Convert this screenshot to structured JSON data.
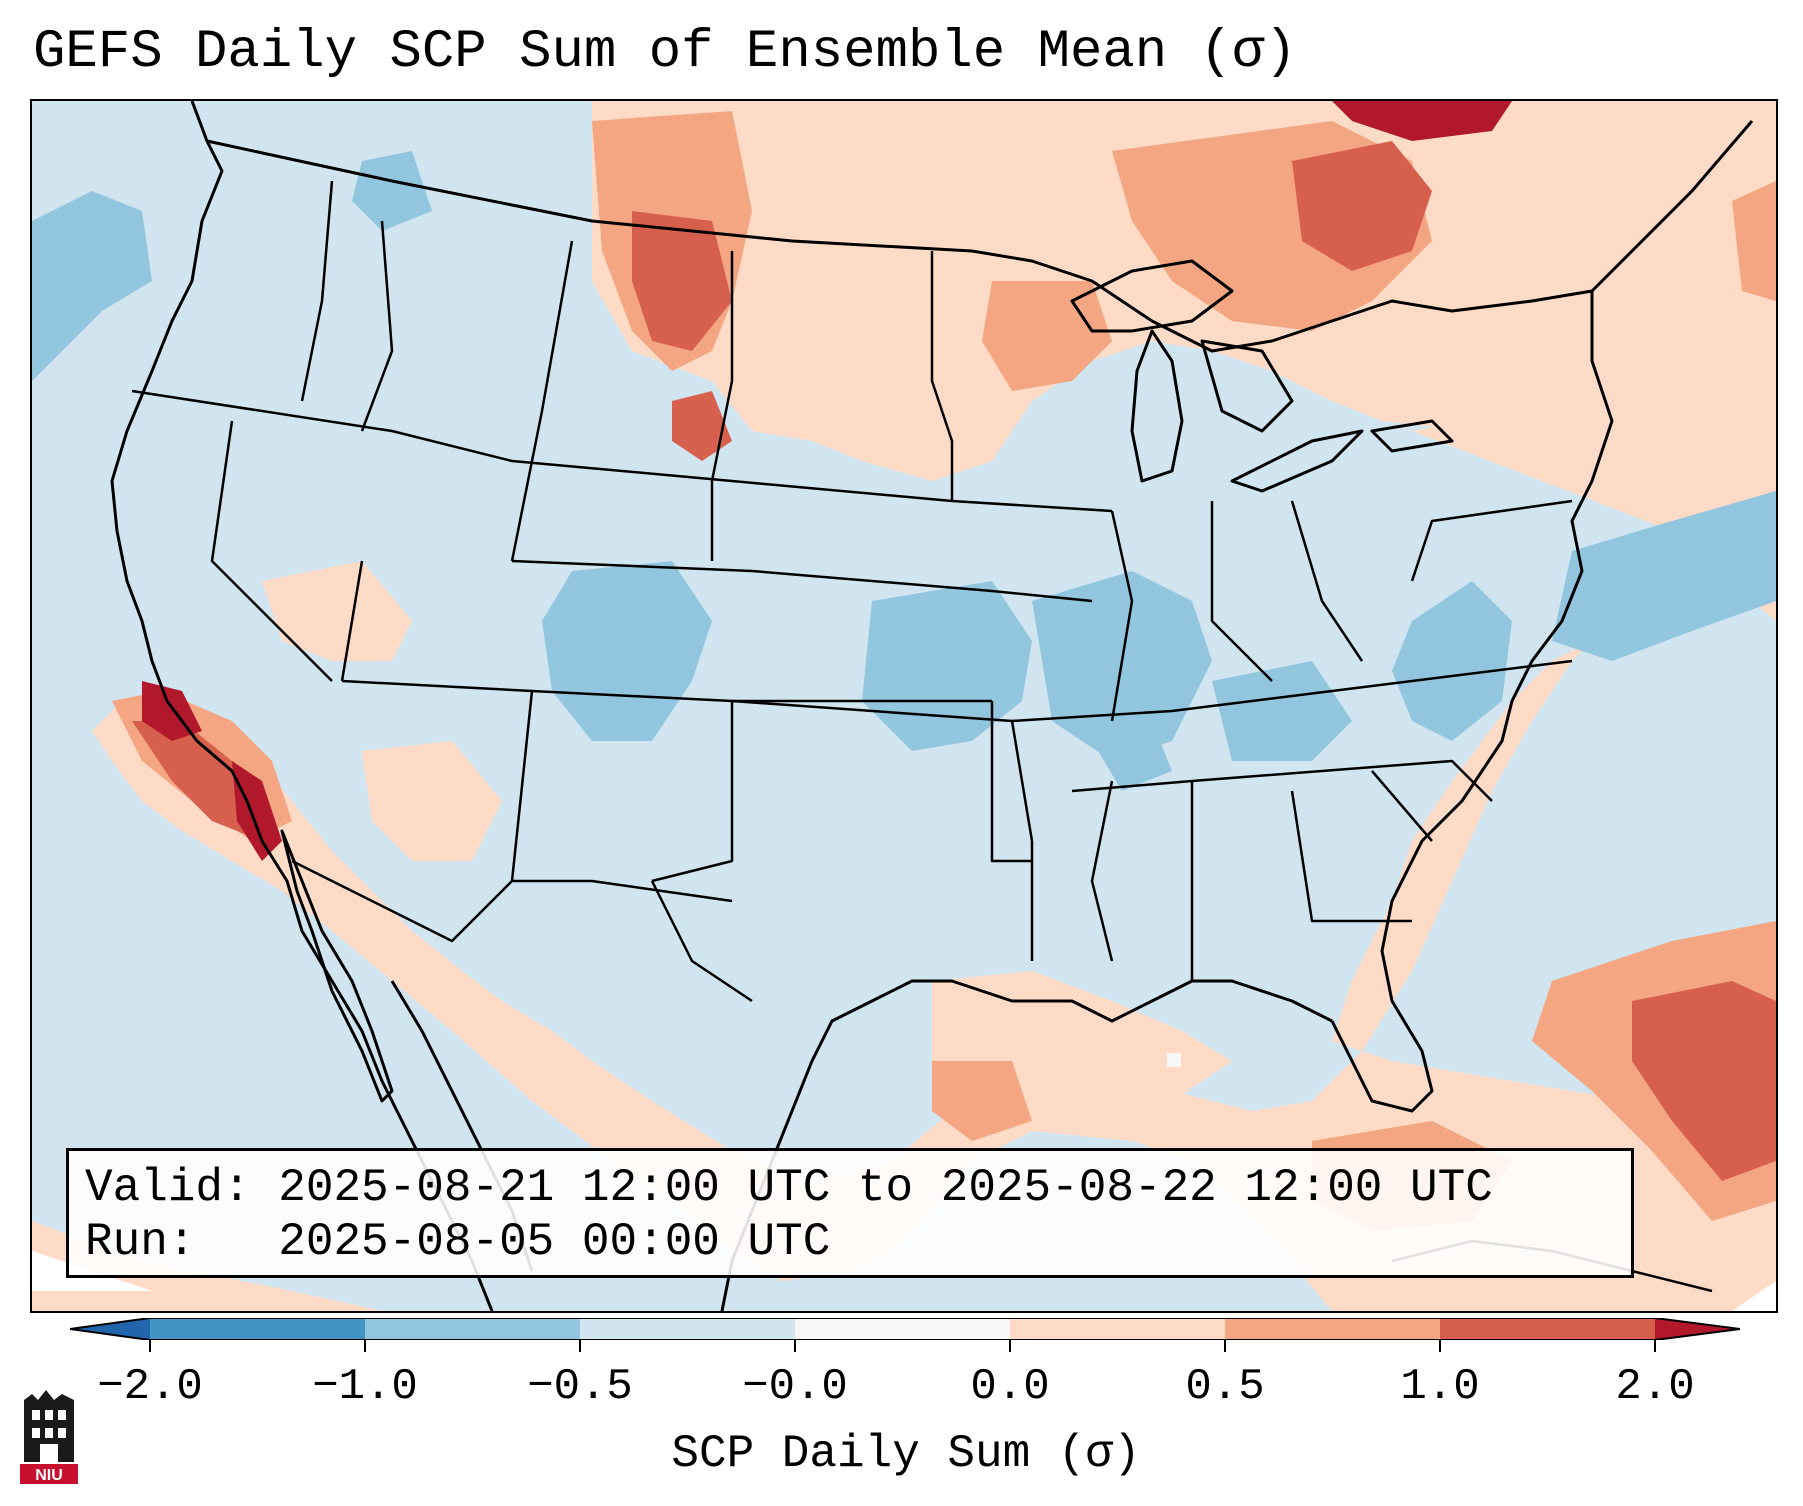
{
  "title": "GEFS Daily SCP Sum of Ensemble Mean (σ)",
  "info": {
    "valid_line": "Valid: 2025-08-21 12:00 UTC to 2025-08-22 12:00 UTC",
    "run_line": "Run:   2025-08-05 00:00 UTC"
  },
  "colorbar": {
    "label": "SCP Daily Sum (σ)",
    "ticks": [
      "−2.0",
      "−1.0",
      "−0.5",
      "−0.0",
      "0.0",
      "0.5",
      "1.0",
      "2.0"
    ],
    "colors": [
      "#4393c3",
      "#92c5de",
      "#d1e5f0",
      "#f7f7f7",
      "#fddbc7",
      "#f4a582",
      "#d6604d"
    ],
    "extend_low_color": "#2166ac",
    "extend_high_color": "#b2182b"
  },
  "logo": {
    "text": "NIU"
  },
  "map": {
    "background_color": "#d1e5f0",
    "outline_color": "#000000"
  }
}
